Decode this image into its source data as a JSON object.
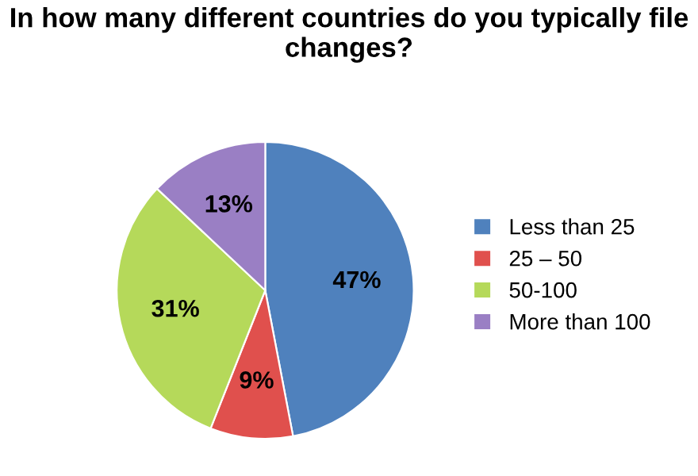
{
  "chart_data": {
    "type": "pie",
    "title": "In how many different countries do you typically file changes?",
    "categories": [
      "Less than 25",
      "25 – 50",
      "50-100",
      "More than 100"
    ],
    "values": [
      47,
      9,
      31,
      13
    ],
    "colors": [
      "#4f81bd",
      "#e0504d",
      "#b5d95a",
      "#9a7fc4"
    ],
    "value_labels": [
      "47%",
      "9%",
      "31%",
      "13%"
    ],
    "legend": "right"
  }
}
